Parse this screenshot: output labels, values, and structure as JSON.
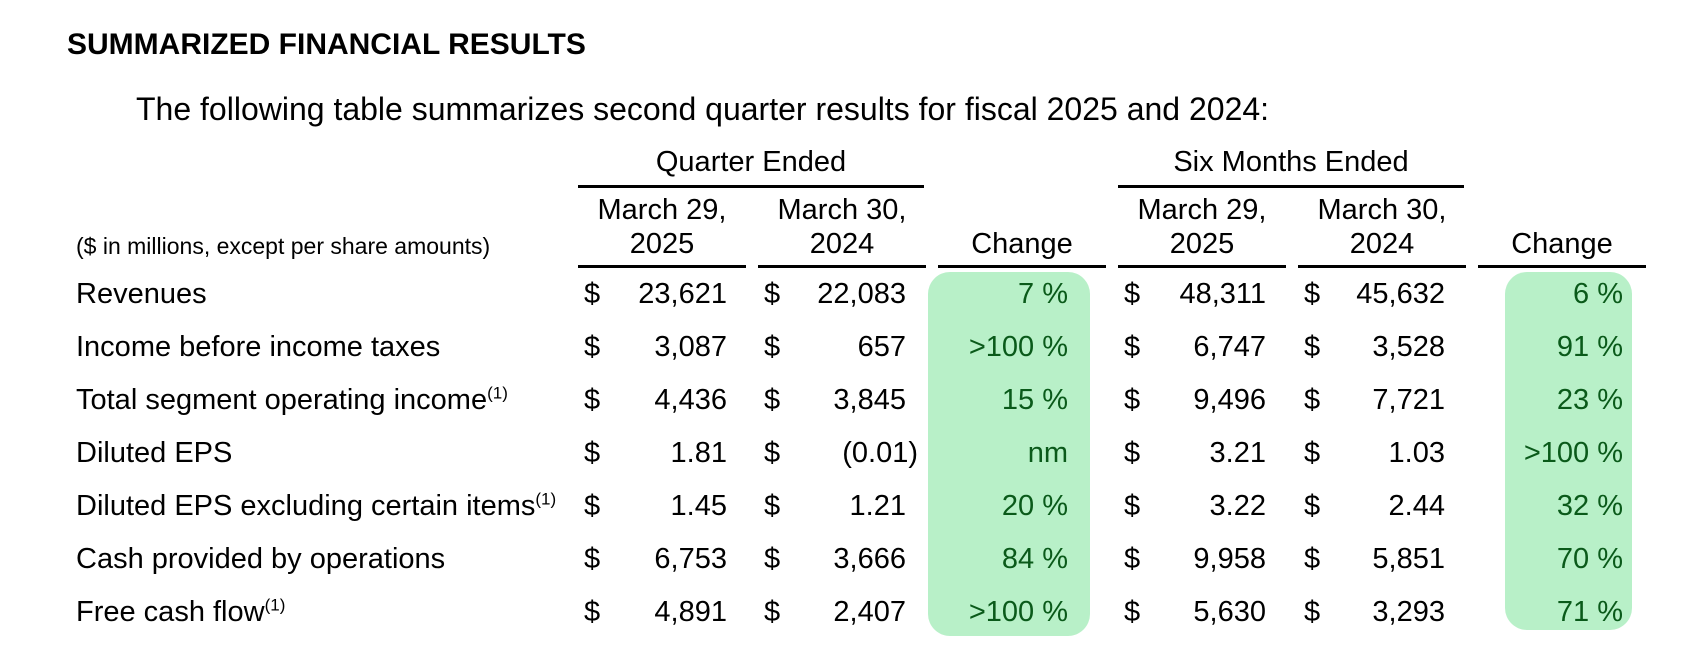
{
  "heading": "SUMMARIZED FINANCIAL RESULTS",
  "intro": "The following table summarizes second quarter results for fiscal 2025 and 2024:",
  "units_note": "($ in millions, except per share amounts)",
  "groups": {
    "quarter": "Quarter Ended",
    "six": "Six Months Ended"
  },
  "columns": {
    "q_2025": [
      "March 29,",
      "2025"
    ],
    "q_2024": [
      "March 30,",
      "2024"
    ],
    "q_change": "Change",
    "s_2025": [
      "March 29,",
      "2025"
    ],
    "s_2024": [
      "March 30,",
      "2024"
    ],
    "s_change": "Change"
  },
  "currency": "$",
  "footnote_mark": "(1)",
  "highlight_color": "#b8f0c8",
  "rows": [
    {
      "label": "Revenues",
      "q2025": "23,621",
      "q2024": "22,083",
      "q_change": "7 %",
      "s2025": "48,311",
      "s2024": "45,632",
      "s_change": "6 %"
    },
    {
      "label": "Income before income taxes",
      "q2025": "3,087",
      "q2024": "657",
      "q_change": ">100 %",
      "s2025": "6,747",
      "s2024": "3,528",
      "s_change": "91 %"
    },
    {
      "label": "Total segment operating income",
      "q2025": "4,436",
      "q2024": "3,845",
      "q_change": "15 %",
      "s2025": "9,496",
      "s2024": "7,721",
      "s_change": "23 %"
    },
    {
      "label": "Diluted EPS",
      "q2025": "1.81",
      "q2024": "(0.01)",
      "q_change": "nm",
      "s2025": "3.21",
      "s2024": "1.03",
      "s_change": ">100 %"
    },
    {
      "label": "Diluted EPS excluding certain items",
      "q2025": "1.45",
      "q2024": "1.21",
      "q_change": "20 %",
      "s2025": "3.22",
      "s2024": "2.44",
      "s_change": "32 %"
    },
    {
      "label": "Cash provided by operations",
      "q2025": "6,753",
      "q2024": "3,666",
      "q_change": "84 %",
      "s2025": "9,958",
      "s2024": "5,851",
      "s_change": "70 %"
    },
    {
      "label": "Free cash flow",
      "q2025": "4,891",
      "q2024": "2,407",
      "q_change": ">100 %",
      "s2025": "5,630",
      "s2024": "3,293",
      "s_change": "71 %"
    }
  ]
}
